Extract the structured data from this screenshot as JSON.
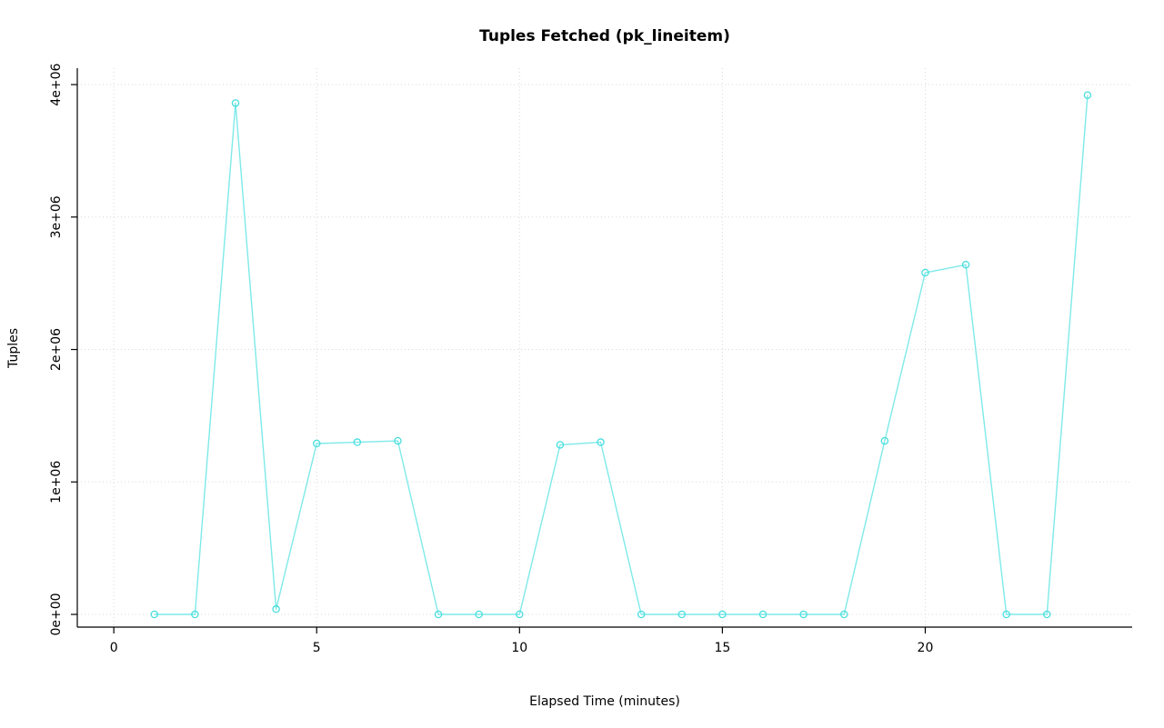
{
  "chart_data": {
    "type": "line",
    "title": "Tuples Fetched (pk_lineitem)",
    "xlabel": "Elapsed Time (minutes)",
    "ylabel": "Tuples",
    "x": [
      1,
      2,
      3,
      4,
      5,
      6,
      7,
      8,
      9,
      10,
      11,
      12,
      13,
      14,
      15,
      16,
      17,
      18,
      19,
      20,
      21,
      22,
      23,
      24
    ],
    "values": [
      0,
      0,
      3860000,
      40000,
      1290000,
      1300000,
      1310000,
      0,
      0,
      0,
      1280000,
      1300000,
      0,
      0,
      0,
      0,
      0,
      0,
      1310000,
      2580000,
      2640000,
      0,
      0,
      3920000
    ],
    "x_ticks": [
      0,
      5,
      10,
      15,
      20
    ],
    "x_tick_labels": [
      "0",
      "5",
      "10",
      "15",
      "20"
    ],
    "y_ticks": [
      0,
      1000000,
      2000000,
      3000000,
      4000000
    ],
    "y_tick_labels": [
      "0e+00",
      "1e+06",
      "2e+06",
      "3e+06",
      "4e+06"
    ],
    "xlim": [
      -0.9,
      25.1
    ],
    "ylim": [
      -96000,
      4124000
    ],
    "grid": true,
    "legend": "none",
    "line_color": "#7fe9e9",
    "point_color": "#4adede",
    "grid_color": "#d9d9d9",
    "axis_color": "#000000"
  }
}
